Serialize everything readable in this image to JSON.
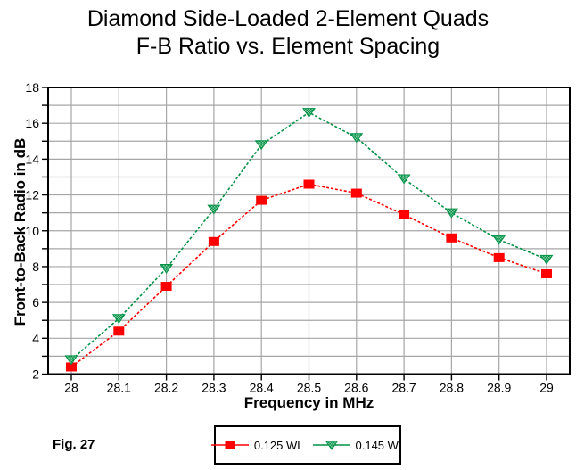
{
  "title": {
    "line1": "Diamond Side-Loaded 2-Element Quads",
    "line2": "F-B Ratio vs. Element Spacing"
  },
  "figure_label": "Fig. 27",
  "chart_data": {
    "type": "line",
    "title": "Diamond Side-Loaded 2-Element Quads",
    "subtitle": "F-B Ratio vs. Element Spacing",
    "xlabel": "Frequency in MHz",
    "ylabel": "Front-to-Back Radio in dB",
    "x": [
      28.0,
      28.1,
      28.2,
      28.3,
      28.4,
      28.5,
      28.6,
      28.7,
      28.8,
      28.9,
      29.0
    ],
    "x_tick_labels": [
      "28",
      "28.1",
      "28.2",
      "28.3",
      "28.4",
      "28.5",
      "28.6",
      "28.7",
      "28.8",
      "28.9",
      "29"
    ],
    "xlim": [
      28,
      29
    ],
    "ylim": [
      2,
      18
    ],
    "y_major_step": 2,
    "y_minor_step": 1,
    "grid": true,
    "legend_position": "bottom-center",
    "series": [
      {
        "name": "0.125 WL",
        "marker": "square",
        "color": "#ff0000",
        "values": [
          2.4,
          4.4,
          6.9,
          9.4,
          11.7,
          12.6,
          12.1,
          10.9,
          9.6,
          8.5,
          7.6
        ]
      },
      {
        "name": "0.145 WL",
        "marker": "triangle-down",
        "color": "#009245",
        "values": [
          2.8,
          5.1,
          7.9,
          11.2,
          14.8,
          16.6,
          15.2,
          12.9,
          11.0,
          9.5,
          8.4
        ]
      }
    ]
  },
  "colors": {
    "background": "#ffffff",
    "grid": "#a6a6a6",
    "axis": "#000000",
    "text": "#000000",
    "series1": "#ff0000",
    "series2": "#009245"
  }
}
